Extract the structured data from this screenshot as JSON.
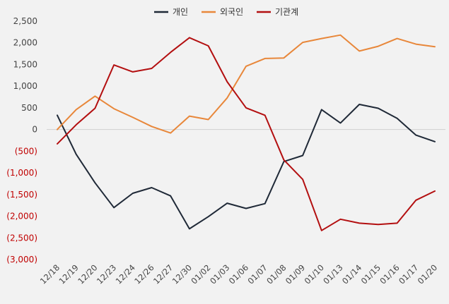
{
  "chart_data": {
    "type": "line",
    "categories": [
      "12/18",
      "12/19",
      "12/20",
      "12/23",
      "12/24",
      "12/26",
      "12/27",
      "12/30",
      "01/02",
      "01/03",
      "01/06",
      "01/07",
      "01/08",
      "01/09",
      "01/10",
      "01/13",
      "01/14",
      "01/15",
      "01/16",
      "01/17",
      "01/20"
    ],
    "series": [
      {
        "name": "개인",
        "color": "#1f2937",
        "values": [
          330,
          -570,
          -1230,
          -1800,
          -1470,
          -1340,
          -1530,
          -2290,
          -2010,
          -1700,
          -1820,
          -1710,
          -740,
          -600,
          460,
          150,
          580,
          490,
          260,
          -130,
          -280
        ]
      },
      {
        "name": "외국인",
        "color": "#e8873a",
        "values": [
          0,
          460,
          770,
          480,
          280,
          70,
          -80,
          310,
          230,
          730,
          1460,
          1640,
          1650,
          2010,
          2100,
          2180,
          1810,
          1920,
          2100,
          1970,
          1910
        ]
      },
      {
        "name": "기관계",
        "color": "#b30f10",
        "values": [
          -330,
          110,
          490,
          1490,
          1330,
          1410,
          1780,
          2120,
          1930,
          1100,
          500,
          330,
          -700,
          -1150,
          -2330,
          -2070,
          -2160,
          -2190,
          -2160,
          -1630,
          -1420
        ]
      }
    ],
    "ylim": [
      -3000,
      2500
    ],
    "yticks": [
      2500,
      2000,
      1500,
      1000,
      500,
      0,
      -500,
      -1000,
      -1500,
      -2000,
      -2500,
      -3000
    ],
    "ytick_labels": [
      "2,500",
      "2,000",
      "1,500",
      "1,000",
      "500",
      "0",
      "(500)",
      "(1,000)",
      "(1,500)",
      "(2,000)",
      "(2,500)",
      "(3,000)"
    ],
    "negative_label_color": "#c00000",
    "positive_label_color": "#444444",
    "grid": false,
    "zero_line": true,
    "legend_position": "top-center"
  }
}
